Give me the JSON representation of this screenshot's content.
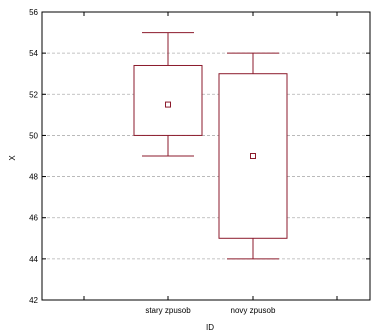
{
  "chart_data": {
    "type": "boxplot",
    "title": "",
    "xlabel": "ID",
    "ylabel": "X",
    "ylim": [
      42,
      56
    ],
    "yticks": [
      "42",
      "44",
      "46",
      "48",
      "50",
      "52",
      "54",
      "56"
    ],
    "categories": [
      "stary zpusob",
      "novy zpusob"
    ],
    "boxes": [
      {
        "category": "stary zpusob",
        "whisker_low": 49,
        "box_low": 50,
        "median": 51.5,
        "box_high": 53.4,
        "whisker_high": 55
      },
      {
        "category": "novy zpusob",
        "whisker_low": 44,
        "box_low": 45,
        "median": 49,
        "box_high": 53,
        "whisker_high": 54
      }
    ],
    "grid": true,
    "colors": {
      "box": "#8b1a2b",
      "grid": "#b0b0b0",
      "axis": "#000000"
    }
  }
}
